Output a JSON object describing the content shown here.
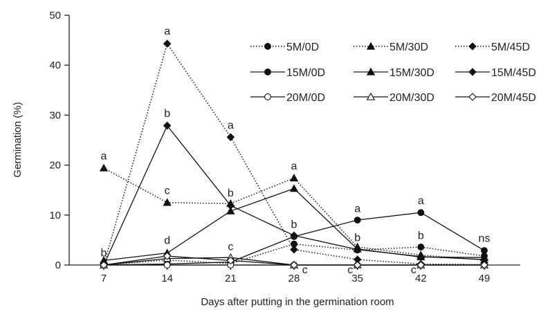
{
  "chart_data": {
    "type": "line",
    "xlabel": "Days after putting in the germination room",
    "ylabel": "Germination (%)",
    "x": [
      7,
      14,
      21,
      28,
      35,
      42,
      49
    ],
    "x_tick_labels": [
      "7",
      "14",
      "21",
      "28",
      "35",
      "42",
      "49"
    ],
    "ylim": [
      0,
      50
    ],
    "y_ticks": [
      0,
      10,
      20,
      30,
      40,
      50
    ],
    "grid": false,
    "legend_position": "top-right",
    "series": [
      {
        "name": "5M/0D",
        "line": "dotted",
        "marker": "circle",
        "fill": "filled",
        "values": [
          0,
          1.0,
          0.3,
          4.2,
          3.0,
          3.6,
          1.8
        ]
      },
      {
        "name": "5M/30D",
        "line": "dotted",
        "marker": "triangle",
        "fill": "filled",
        "values": [
          19.4,
          12.5,
          12.3,
          17.4,
          3.6,
          2.0,
          1.0
        ]
      },
      {
        "name": "5M/45D",
        "line": "dotted",
        "marker": "diamond",
        "fill": "filled",
        "values": [
          0,
          44.3,
          25.6,
          3.1,
          1.1,
          0.2,
          0.1
        ]
      },
      {
        "name": "15M/0D",
        "line": "solid",
        "marker": "circle",
        "fill": "filled",
        "values": [
          0,
          0.2,
          0.6,
          5.7,
          9.0,
          10.5,
          2.9
        ]
      },
      {
        "name": "15M/30D",
        "line": "solid",
        "marker": "triangle",
        "fill": "filled",
        "values": [
          0.9,
          2.4,
          10.8,
          15.3,
          3.2,
          1.6,
          1.5
        ]
      },
      {
        "name": "15M/45D",
        "line": "solid",
        "marker": "diamond",
        "fill": "filled",
        "values": [
          0,
          27.9,
          11.9,
          5.9,
          3.1,
          1.7,
          1.1
        ]
      },
      {
        "name": "20M/0D",
        "line": "solid",
        "marker": "circle",
        "fill": "open",
        "values": [
          0,
          0,
          0,
          0,
          0,
          0,
          0
        ]
      },
      {
        "name": "20M/30D",
        "line": "solid",
        "marker": "triangle",
        "fill": "open",
        "values": [
          0,
          1.3,
          1.5,
          0,
          0,
          0,
          0
        ]
      },
      {
        "name": "20M/45D",
        "line": "solid",
        "marker": "diamond",
        "fill": "open",
        "values": [
          0,
          1.8,
          0.9,
          0,
          0,
          0,
          0
        ]
      }
    ],
    "annotations": [
      {
        "text": "a",
        "x": 14,
        "y": 46.8
      },
      {
        "text": "b",
        "x": 14,
        "y": 30.3
      },
      {
        "text": "c",
        "x": 14,
        "y": 14.9
      },
      {
        "text": "d",
        "x": 14,
        "y": 4.9
      },
      {
        "text": "a",
        "x": 7,
        "y": 21.8
      },
      {
        "text": "b",
        "x": 7,
        "y": 2.4
      },
      {
        "text": "a",
        "x": 21,
        "y": 28.0
      },
      {
        "text": "b",
        "x": 21,
        "y": 14.4
      },
      {
        "text": "c",
        "x": 21,
        "y": 3.7
      },
      {
        "text": "a",
        "x": 28,
        "y": 19.8
      },
      {
        "text": "b",
        "x": 28,
        "y": 8.1
      },
      {
        "text": "c",
        "x": 29.2,
        "y": -1.0
      },
      {
        "text": "a",
        "x": 35,
        "y": 11.3
      },
      {
        "text": "b",
        "x": 35,
        "y": 5.5
      },
      {
        "text": "c",
        "x": 34.2,
        "y": -1.0
      },
      {
        "text": "a",
        "x": 42,
        "y": 12.9
      },
      {
        "text": "b",
        "x": 42,
        "y": 5.9
      },
      {
        "text": "c",
        "x": 41.2,
        "y": -1.0
      },
      {
        "text": "ns",
        "x": 49,
        "y": 5.3
      }
    ]
  }
}
